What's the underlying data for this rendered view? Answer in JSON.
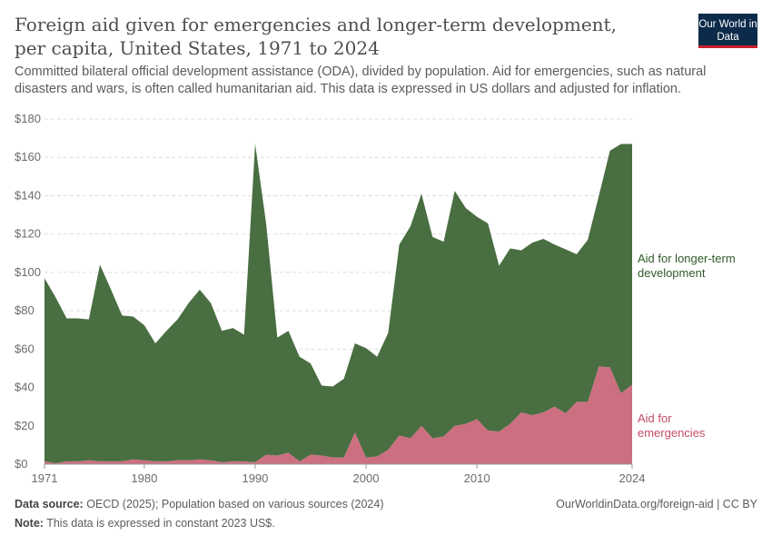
{
  "title": "Foreign aid given for emergencies and longer-term development, per capita, United States, 1971 to 2024",
  "subtitle": "Committed bilateral official development assistance (ODA), divided by population. Aid for emergencies, such as natural disasters and wars, is often called humanitarian aid. This data is expressed in US dollars and adjusted for inflation.",
  "logo": "Our World in Data",
  "footer": {
    "source_label": "Data source:",
    "source": "OECD (2025); Population based on various sources (2024)",
    "url": "OurWorldinData.org/foreign-aid | CC BY",
    "note_label": "Note:",
    "note": "This data is expressed in constant 2023 US$."
  },
  "chart_data": {
    "type": "area",
    "stacked": true,
    "grid": "horizontal dashed",
    "legend": "right, inline labels",
    "ylim": [
      0,
      180
    ],
    "y_ticks": [
      "$0",
      "$20",
      "$40",
      "$60",
      "$80",
      "$100",
      "$120",
      "$140",
      "$160",
      "$180"
    ],
    "x_ticks": [
      "1971",
      "1980",
      "1990",
      "2000",
      "2010",
      "2024"
    ],
    "x": [
      1971,
      1972,
      1973,
      1974,
      1975,
      1976,
      1977,
      1978,
      1979,
      1980,
      1981,
      1982,
      1983,
      1984,
      1985,
      1986,
      1987,
      1988,
      1989,
      1990,
      1991,
      1992,
      1993,
      1994,
      1995,
      1996,
      1997,
      1998,
      1999,
      2000,
      2001,
      2002,
      2003,
      2004,
      2005,
      2006,
      2007,
      2008,
      2009,
      2010,
      2011,
      2012,
      2013,
      2014,
      2015,
      2016,
      2017,
      2018,
      2019,
      2020,
      2021,
      2022,
      2023,
      2024
    ],
    "series": [
      {
        "name": "Aid for emergencies",
        "color": "#cc6f80",
        "values": [
          1.5,
          0.5,
          1.5,
          1.5,
          2,
          1.5,
          1.5,
          1.5,
          2.5,
          2,
          1.5,
          1.5,
          2,
          2,
          2.5,
          2,
          1,
          1.5,
          1.5,
          1,
          5,
          4.5,
          6,
          1.5,
          5,
          4.5,
          3.5,
          3.5,
          16.5,
          3.5,
          4,
          7.5,
          15,
          13.5,
          20,
          13.5,
          14.5,
          20,
          21,
          23.5,
          17.5,
          17,
          21,
          27,
          25.5,
          27,
          30,
          26.5,
          32.5,
          32.5,
          51,
          50.5,
          37,
          41.5
        ]
      },
      {
        "name": "Aid for longer-term development",
        "color": "#496e41",
        "values": [
          95.5,
          86.5,
          74.5,
          74.5,
          73.5,
          102.5,
          89.5,
          76,
          74.5,
          70.5,
          61.5,
          68,
          73.5,
          82,
          88.5,
          82,
          68.5,
          69.5,
          66,
          166,
          120,
          61.5,
          63.5,
          54.5,
          47.5,
          36.5,
          37,
          41,
          46.5,
          57,
          52,
          61,
          99.5,
          110.5,
          121,
          105,
          101.5,
          122.5,
          112.5,
          105.5,
          108,
          86.5,
          91.5,
          84.5,
          90,
          90.5,
          84.5,
          85.5,
          77,
          84.5,
          89,
          113,
          130,
          125.5
        ]
      }
    ]
  }
}
